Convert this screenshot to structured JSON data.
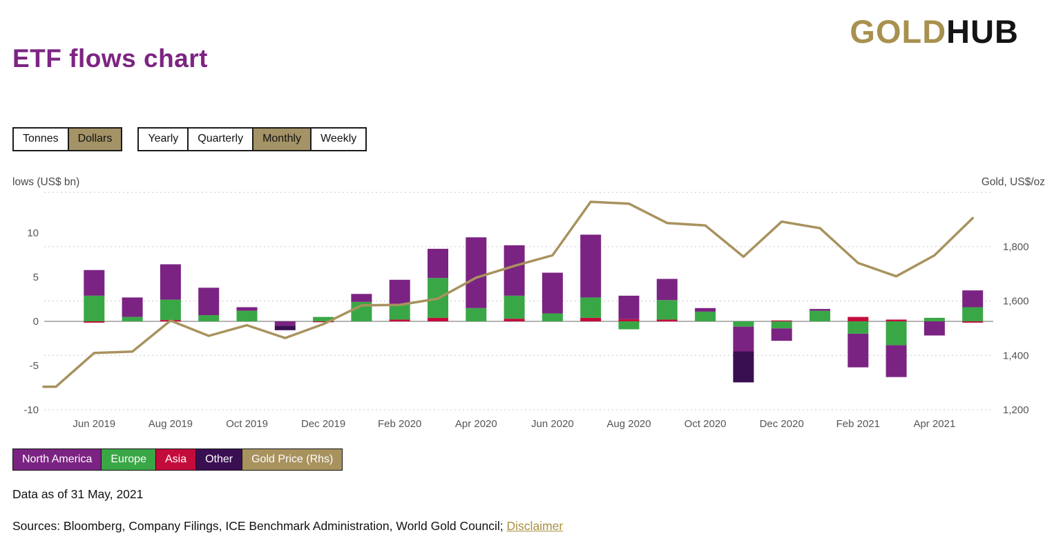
{
  "header": {
    "logo_gold": "GOLD",
    "logo_hub": "HUB"
  },
  "page_title": "ETF flows chart",
  "controls": {
    "unit_toggle": {
      "options": [
        "Tonnes",
        "Dollars"
      ],
      "active": "Dollars"
    },
    "frequency_toggle": {
      "options": [
        "Yearly",
        "Quarterly",
        "Monthly",
        "Weekly"
      ],
      "active": "Monthly"
    }
  },
  "chart_data": {
    "type": "bar",
    "subtype": "stacked-bars-with-line-overlay",
    "left_axis": {
      "title": "lows (US$ bn)",
      "tick_values": [
        10,
        5,
        0,
        -5,
        -10
      ],
      "range": [
        -11,
        15
      ]
    },
    "right_axis": {
      "title": "Gold, US$/oz",
      "tick_values": [
        1800,
        1600,
        1400,
        1200
      ],
      "tick_labels": [
        "1,800",
        "1,600",
        "1,400",
        "1,200"
      ],
      "grid_values": [
        2000,
        1800,
        1600,
        1400,
        1200
      ],
      "range": [
        1200,
        2000
      ]
    },
    "grid": "dotted-horizontal",
    "legend_position": "bottom-left",
    "months": [
      "May 2019",
      "Jun 2019",
      "Jul 2019",
      "Aug 2019",
      "Sep 2019",
      "Oct 2019",
      "Nov 2019",
      "Dec 2019",
      "Jan 2020",
      "Feb 2020",
      "Mar 2020",
      "Apr 2020",
      "May 2020",
      "Jun 2020",
      "Jul 2020",
      "Aug 2020",
      "Sep 2020",
      "Oct 2020",
      "Nov 2020",
      "Dec 2020",
      "Jan 2021",
      "Feb 2021",
      "Mar 2021",
      "Apr 2021",
      "May 2021"
    ],
    "x_ticks": [
      {
        "i": 1,
        "label": "Jun 2019"
      },
      {
        "i": 3,
        "label": "Aug 2019"
      },
      {
        "i": 5,
        "label": "Oct 2019"
      },
      {
        "i": 7,
        "label": "Dec 2019"
      },
      {
        "i": 9,
        "label": "Feb 2020"
      },
      {
        "i": 11,
        "label": "Apr 2020"
      },
      {
        "i": 13,
        "label": "Jun 2020"
      },
      {
        "i": 15,
        "label": "Aug 2020"
      },
      {
        "i": 17,
        "label": "Oct 2020"
      },
      {
        "i": 19,
        "label": "Dec 2020"
      },
      {
        "i": 21,
        "label": "Feb 2021"
      },
      {
        "i": 23,
        "label": "Apr 2021"
      }
    ],
    "stack_render_order": [
      "Asia",
      "Europe",
      "North America",
      "Other"
    ],
    "series": [
      {
        "name": "North America",
        "type": "bar",
        "color": "#7b2382",
        "values": [
          0,
          2.9,
          2.2,
          4.0,
          3.1,
          0.4,
          -0.5,
          0,
          0.9,
          2.8,
          3.3,
          8.0,
          5.7,
          4.6,
          7.1,
          2.65,
          2.4,
          0.4,
          -2.8,
          -1.4,
          0.2,
          -3.8,
          -3.6,
          -1.6,
          1.9
        ]
      },
      {
        "name": "Europe",
        "type": "bar",
        "color": "#3aa747",
        "values": [
          0,
          2.9,
          0.5,
          2.3,
          0.7,
          1.2,
          0,
          0.5,
          2.2,
          1.7,
          4.5,
          1.5,
          2.6,
          0.9,
          2.3,
          -0.9,
          2.2,
          1.1,
          -0.6,
          -0.8,
          1.2,
          -1.4,
          -2.7,
          0.4,
          1.6
        ]
      },
      {
        "name": "Asia",
        "type": "bar",
        "color": "#c40c3c",
        "values": [
          0,
          -0.15,
          0,
          0.15,
          0,
          0,
          0,
          -0.1,
          0,
          0.2,
          0.4,
          0,
          0.3,
          0,
          0.4,
          0.25,
          0.2,
          0,
          0,
          0.1,
          0,
          0.5,
          0.2,
          0,
          -0.15
        ]
      },
      {
        "name": "Other",
        "type": "bar",
        "color": "#3a0f52",
        "values": [
          0,
          0,
          0,
          0,
          0,
          0,
          -0.5,
          0,
          0,
          0,
          0,
          0,
          0,
          0,
          0,
          0,
          0,
          0,
          -3.5,
          0,
          0,
          0,
          0,
          0,
          0
        ]
      },
      {
        "name": "Gold Price (Rhs)",
        "type": "line",
        "axis": "right",
        "color": "#a8925e",
        "values": [
          1285,
          1409,
          1414,
          1528,
          1472,
          1511,
          1464,
          1515,
          1584,
          1586,
          1609,
          1686,
          1729,
          1768,
          1965,
          1958,
          1887,
          1878,
          1763,
          1892,
          1868,
          1740,
          1691,
          1768,
          1905
        ]
      }
    ]
  },
  "legend": [
    {
      "label": "North America",
      "color": "#7b2382"
    },
    {
      "label": "Europe",
      "color": "#3aa747"
    },
    {
      "label": "Asia",
      "color": "#c40c3c"
    },
    {
      "label": "Other",
      "color": "#3a0f52"
    },
    {
      "label": "Gold Price (Rhs)",
      "color": "#a8925e"
    }
  ],
  "footer": {
    "data_as_of": "Data as of 31 May, 2021",
    "sources_prefix": "Sources: Bloomberg, Company Filings, ICE Benchmark Administration, World Gold Council; ",
    "disclaimer_label": "Disclaimer"
  }
}
